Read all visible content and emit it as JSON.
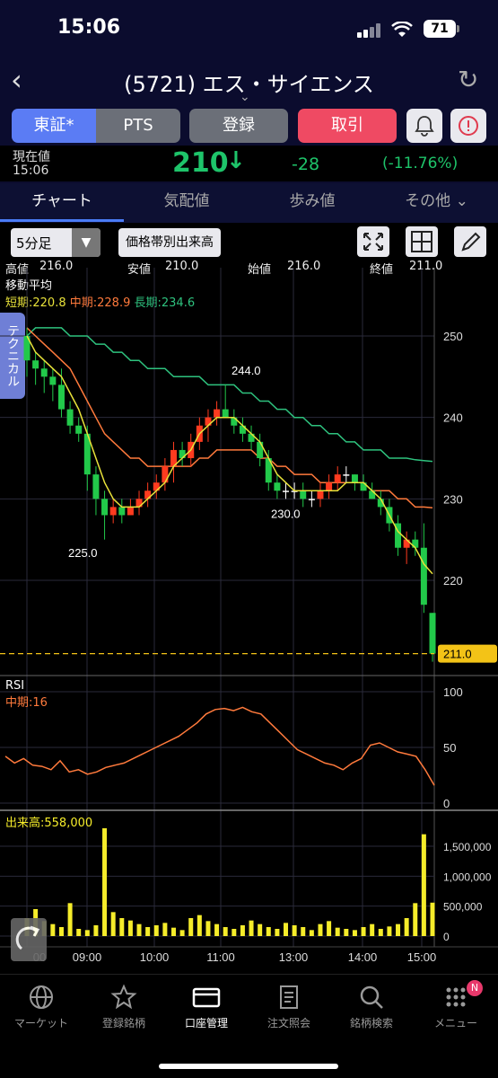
{
  "status": {
    "time": "15:06",
    "battery": "71"
  },
  "header": {
    "title": "(5721) エス・サイエンス"
  },
  "buttons": {
    "tosho": "東証*",
    "pts": "PTS",
    "register": "登録",
    "trade": "取引"
  },
  "price": {
    "label1": "現在値",
    "label2": "15:06",
    "value": "210",
    "change": "-28",
    "pct": "(-11.76%)"
  },
  "tabs": [
    "チャート",
    "気配値",
    "歩み値",
    "その他"
  ],
  "chart_controls": {
    "timeframe": "5分足",
    "volume_by_price": "価格帯別出来高"
  },
  "ohlc": {
    "high_label": "高値",
    "high": "216.0",
    "low_label": "安値",
    "low": "210.0",
    "open_label": "始値",
    "open": "216.0",
    "close_label": "終値",
    "close": "211.0"
  },
  "ma": {
    "title": "移動平均",
    "short": "短期:220.8",
    "mid": "中期:228.9",
    "long": "長期:234.6",
    "short_color": "#e9e23a",
    "mid_color": "#ff7a3c",
    "long_color": "#2ec27e"
  },
  "side_tab": "テクニカル",
  "annotations": {
    "a225": "225.0",
    "a244": "244.0",
    "a230": "230.0",
    "last": "211.0"
  },
  "rsi": {
    "title": "RSI",
    "mid": "中期:16"
  },
  "volume": {
    "title": "出来高:558,000"
  },
  "chart_data": {
    "type": "line",
    "price_axis": [
      250,
      240,
      230,
      220
    ],
    "rsi_axis": [
      100,
      50,
      0
    ],
    "volume_axis": [
      "1,500,000",
      "1,000,000",
      "500,000",
      "0"
    ],
    "time_labels": [
      "09:00",
      "10:00",
      "11:00",
      "13:00",
      "14:00",
      "15:00"
    ],
    "first_time_label": "00",
    "candles": [
      [
        250,
        251,
        245,
        247
      ],
      [
        247,
        248,
        244,
        246
      ],
      [
        246,
        247,
        243,
        245
      ],
      [
        245,
        246,
        242,
        244
      ],
      [
        244,
        246,
        240,
        241
      ],
      [
        241,
        242,
        238,
        239
      ],
      [
        239,
        240,
        237,
        238
      ],
      [
        238,
        239,
        231,
        233
      ],
      [
        233,
        234,
        228,
        230
      ],
      [
        230,
        231,
        225,
        228
      ],
      [
        228,
        230,
        227,
        229
      ],
      [
        229,
        230,
        227,
        228
      ],
      [
        228,
        230,
        228,
        229
      ],
      [
        229,
        231,
        228,
        230
      ],
      [
        230,
        232,
        229,
        231
      ],
      [
        231,
        233,
        230,
        232
      ],
      [
        232,
        235,
        231,
        234
      ],
      [
        234,
        237,
        232,
        236
      ],
      [
        236,
        237,
        234,
        235
      ],
      [
        235,
        238,
        234,
        237
      ],
      [
        237,
        240,
        236,
        239
      ],
      [
        239,
        241,
        237,
        240
      ],
      [
        240,
        242,
        239,
        241
      ],
      [
        241,
        244,
        240,
        240
      ],
      [
        240,
        241,
        238,
        239
      ],
      [
        239,
        240,
        237,
        238
      ],
      [
        238,
        239,
        236,
        237
      ],
      [
        237,
        238,
        234,
        235
      ],
      [
        235,
        236,
        231,
        232
      ],
      [
        232,
        233,
        230,
        231
      ],
      [
        231,
        232,
        230,
        231
      ],
      [
        231,
        232,
        230,
        231
      ],
      [
        231,
        232,
        229,
        230
      ],
      [
        230,
        231,
        229,
        230
      ],
      [
        230,
        232,
        229,
        231
      ],
      [
        231,
        233,
        230,
        232
      ],
      [
        232,
        234,
        231,
        233
      ],
      [
        233,
        234,
        232,
        233
      ],
      [
        233,
        233,
        231,
        232
      ],
      [
        232,
        233,
        231,
        231
      ],
      [
        231,
        232,
        230,
        230
      ],
      [
        230,
        231,
        228,
        229
      ],
      [
        229,
        230,
        226,
        227
      ],
      [
        227,
        228,
        223,
        224
      ],
      [
        224,
        226,
        222,
        225
      ],
      [
        225,
        226,
        223,
        224
      ],
      [
        224,
        227,
        216,
        217
      ],
      [
        216,
        216,
        210,
        211
      ]
    ],
    "ma_short": [
      250,
      248,
      247,
      246,
      245,
      243,
      241,
      238,
      235,
      232,
      230,
      229,
      229,
      229,
      230,
      231,
      232,
      234,
      235,
      236,
      238,
      239,
      240,
      240,
      240,
      239,
      238,
      237,
      235,
      233,
      232,
      231,
      231,
      231,
      231,
      231,
      231,
      232,
      232,
      232,
      231,
      230,
      228,
      226,
      225,
      224,
      222,
      220.8
    ],
    "ma_mid": [
      251,
      250,
      249,
      248,
      247,
      246,
      244,
      242,
      240,
      238,
      237,
      236,
      235,
      235,
      234,
      234,
      234,
      234,
      234,
      234,
      235,
      235,
      236,
      236,
      236,
      236,
      236,
      235,
      235,
      234,
      234,
      233,
      233,
      233,
      232,
      232,
      232,
      232,
      232,
      232,
      231,
      231,
      231,
      230,
      230,
      229,
      229,
      228.9
    ],
    "ma_long": [
      250,
      251,
      251,
      251,
      251,
      250,
      250,
      250,
      249,
      249,
      248,
      248,
      247,
      247,
      246,
      246,
      246,
      245,
      245,
      245,
      245,
      244,
      244,
      244,
      244,
      243,
      243,
      242,
      242,
      241,
      241,
      240,
      240,
      239,
      239,
      238,
      238,
      237,
      237,
      236,
      236,
      236,
      235,
      235,
      235,
      234.8,
      234.7,
      234.6
    ],
    "rsi_values": [
      42,
      36,
      40,
      34,
      33,
      30,
      38,
      28,
      30,
      26,
      28,
      32,
      34,
      36,
      40,
      44,
      48,
      52,
      56,
      60,
      66,
      72,
      80,
      84,
      85,
      83,
      86,
      82,
      80,
      72,
      64,
      56,
      48,
      44,
      40,
      36,
      34,
      30,
      36,
      40,
      52,
      54,
      50,
      46,
      44,
      42,
      30,
      16
    ],
    "volume_values": [
      300000,
      450000,
      250000,
      200000,
      150000,
      550000,
      120000,
      100000,
      180000,
      1800000,
      400000,
      300000,
      260000,
      200000,
      150000,
      180000,
      220000,
      140000,
      100000,
      300000,
      350000,
      250000,
      200000,
      150000,
      120000,
      180000,
      260000,
      200000,
      150000,
      120000,
      220000,
      180000,
      150000,
      100000,
      200000,
      250000,
      140000,
      120000,
      100000,
      150000,
      200000,
      120000,
      160000,
      200000,
      300000,
      550000,
      1700000,
      558000
    ]
  },
  "nav": [
    {
      "label": "マーケット",
      "icon": "globe-icon"
    },
    {
      "label": "登録銘柄",
      "icon": "star-icon"
    },
    {
      "label": "口座管理",
      "icon": "card-icon"
    },
    {
      "label": "注文照会",
      "icon": "document-icon"
    },
    {
      "label": "銘柄検索",
      "icon": "search-icon"
    },
    {
      "label": "メニュー",
      "icon": "grid-icon",
      "badge": "N"
    }
  ]
}
